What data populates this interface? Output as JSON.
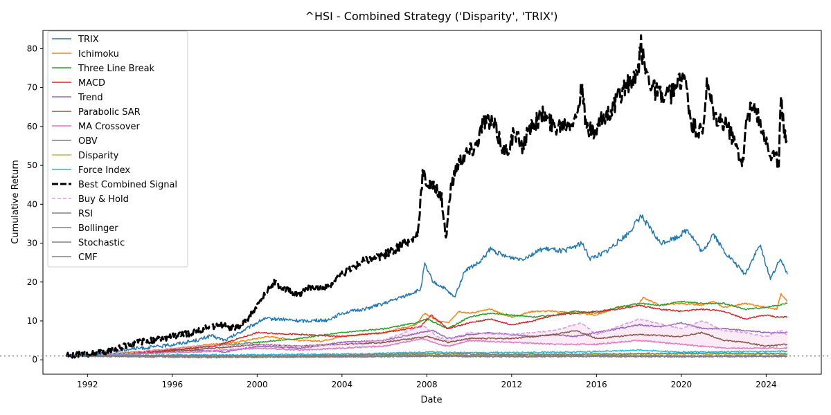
{
  "chart_data": {
    "type": "line",
    "title": "^HSI - Combined Strategy ('Disparity', 'TRIX')",
    "xlabel": "Date",
    "ylabel": "Cumulative Return",
    "xlim": [
      1989.9,
      2026.6
    ],
    "ylim": [
      -3.7,
      84.7
    ],
    "x_ticks": [
      1992,
      1996,
      2000,
      2004,
      2008,
      2012,
      2016,
      2020,
      2024
    ],
    "x_tick_labels": [
      "1992",
      "1996",
      "2000",
      "2004",
      "2008",
      "2012",
      "2016",
      "2020",
      "2024"
    ],
    "y_ticks": [
      0,
      10,
      20,
      30,
      40,
      50,
      60,
      70,
      80
    ],
    "y_tick_labels": [
      "0",
      "10",
      "20",
      "30",
      "40",
      "50",
      "60",
      "70",
      "80"
    ],
    "grid": false,
    "legend_position": "upper-left",
    "reference_line": {
      "y": 1,
      "color": "#808080",
      "style": "dotted"
    },
    "shaded_region": {
      "between": [
        "Buy & Hold",
        "MA Crossover"
      ],
      "color": "#e377c2",
      "opacity": 0.15
    },
    "series": [
      {
        "name": "TRIX",
        "color": "#1f77b4",
        "style": "solid",
        "width": 1.5,
        "x": [
          1991.0,
          1992,
          1993,
          1994,
          1995,
          1996,
          1997.3,
          1997.8,
          1998.5,
          1999.5,
          2000.3,
          2001,
          2002,
          2003.3,
          2004,
          2005,
          2006,
          2007,
          2007.7,
          2007.9,
          2008.3,
          2008.8,
          2009.3,
          2009.8,
          2010.5,
          2011,
          2011.7,
          2012.5,
          2013.5,
          2014.5,
          2015.3,
          2015.7,
          2016.5,
          2017.5,
          2018.1,
          2018.5,
          2019,
          2019.8,
          2020.3,
          2021,
          2021.5,
          2022,
          2022.5,
          2023,
          2023.7,
          2024.2,
          2024.7,
          2025.0
        ],
        "y": [
          1.0,
          1.3,
          2.0,
          2.8,
          3.2,
          3.9,
          5.2,
          6.2,
          5.0,
          8.0,
          10.5,
          10.5,
          10.0,
          10.2,
          12.0,
          13.0,
          14.5,
          16.5,
          18.0,
          24.5,
          20.0,
          18.5,
          16.0,
          23.0,
          25.0,
          28.5,
          26.5,
          26.0,
          28.5,
          28.0,
          30.0,
          26.0,
          28.0,
          32.5,
          37.0,
          34.0,
          30.0,
          31.5,
          33.5,
          27.5,
          32.5,
          28.0,
          25.0,
          22.0,
          29.5,
          21.0,
          26.0,
          22.0
        ]
      },
      {
        "name": "Ichimoku",
        "color": "#ff7f0e",
        "style": "solid",
        "width": 1.5,
        "x": [
          1991.0,
          1993,
          1996,
          1997.8,
          1999,
          2000.5,
          2002,
          2003,
          2004,
          2006,
          2007.5,
          2007.9,
          2008.5,
          2009,
          2009.5,
          2010,
          2011,
          2012,
          2013,
          2014,
          2015,
          2016,
          2017,
          2018,
          2018.2,
          2019,
          2020,
          2021,
          2021.5,
          2022,
          2023,
          2024,
          2024.5,
          2024.7,
          2025.0
        ],
        "y": [
          1.0,
          1.5,
          2.8,
          4.0,
          4.5,
          6.0,
          5.0,
          4.8,
          6.0,
          7.0,
          9.0,
          12.0,
          10.0,
          9.5,
          12.5,
          12.0,
          13.0,
          11.0,
          12.5,
          12.5,
          12.0,
          11.5,
          13.5,
          14.5,
          16.0,
          14.0,
          14.5,
          14.0,
          15.0,
          13.5,
          14.5,
          13.5,
          13.0,
          17.0,
          15.0
        ]
      },
      {
        "name": "Three Line Break",
        "color": "#2ca02c",
        "style": "solid",
        "width": 1.5,
        "x": [
          1991.0,
          1993,
          1996,
          1997.8,
          2000,
          2002,
          2004,
          2006,
          2007.5,
          2008,
          2009,
          2010,
          2011,
          2012,
          2013,
          2014,
          2015,
          2016,
          2017,
          2018,
          2019,
          2020,
          2021,
          2022,
          2023,
          2024,
          2024.5,
          2025.0
        ],
        "y": [
          1.0,
          1.5,
          2.5,
          3.5,
          4.5,
          5.5,
          7.0,
          8.0,
          9.5,
          10.5,
          8.0,
          11.0,
          12.0,
          11.5,
          11.0,
          11.5,
          12.5,
          12.0,
          13.5,
          14.5,
          14.0,
          15.0,
          14.5,
          14.5,
          13.0,
          13.5,
          14.0,
          14.5
        ]
      },
      {
        "name": "MACD",
        "color": "#d62728",
        "style": "solid",
        "width": 1.5,
        "x": [
          1991.0,
          1993,
          1996,
          1998,
          2000,
          2002,
          2004,
          2006,
          2007.7,
          2008.2,
          2009,
          2010,
          2011,
          2012,
          2013,
          2014,
          2015,
          2016,
          2017,
          2018,
          2019,
          2020,
          2021,
          2022,
          2023,
          2024,
          2024.5,
          2025.0
        ],
        "y": [
          1.0,
          1.3,
          2.5,
          3.5,
          7.0,
          6.5,
          6.0,
          7.0,
          8.5,
          11.5,
          8.0,
          9.5,
          10.5,
          9.0,
          10.0,
          11.5,
          12.0,
          12.5,
          13.0,
          14.0,
          13.0,
          12.5,
          13.0,
          12.5,
          10.5,
          11.5,
          11.0,
          11.0
        ]
      },
      {
        "name": "Trend",
        "color": "#9467bd",
        "style": "solid",
        "width": 1.5,
        "x": [
          1991.0,
          1994,
          1997,
          1998.5,
          2000,
          2002,
          2004,
          2006,
          2007.7,
          2008.3,
          2009,
          2010,
          2011,
          2012,
          2013,
          2014,
          2015,
          2016,
          2017,
          2018,
          2019,
          2020,
          2021,
          2022,
          2023,
          2024,
          2024.5,
          2025.0
        ],
        "y": [
          1.0,
          1.5,
          2.5,
          2.0,
          3.5,
          3.0,
          4.5,
          5.0,
          7.0,
          7.5,
          5.5,
          6.5,
          7.0,
          6.5,
          6.0,
          6.5,
          6.0,
          7.0,
          8.0,
          9.0,
          8.5,
          9.5,
          8.0,
          8.0,
          7.5,
          7.0,
          7.0,
          7.0
        ]
      },
      {
        "name": "Parabolic SAR",
        "color": "#8c564b",
        "style": "solid",
        "width": 1.5,
        "x": [
          1991.0,
          1994,
          1997,
          2000,
          2002,
          2004,
          2006,
          2008,
          2009,
          2010,
          2012,
          2014,
          2015,
          2016,
          2018,
          2020,
          2021,
          2022,
          2023,
          2024,
          2025.0
        ],
        "y": [
          1.0,
          1.5,
          2.5,
          4.0,
          3.5,
          4.0,
          4.5,
          6.0,
          4.5,
          5.5,
          5.5,
          6.5,
          7.5,
          5.5,
          6.5,
          6.0,
          7.0,
          5.0,
          4.5,
          3.5,
          4.0
        ]
      },
      {
        "name": "MA Crossover",
        "color": "#e377c2",
        "style": "solid",
        "width": 1.5,
        "x": [
          1991.0,
          1994,
          1997,
          2000,
          2002,
          2004,
          2006,
          2007.8,
          2008.5,
          2009,
          2010,
          2012,
          2014,
          2016,
          2018,
          2020,
          2021,
          2022,
          2023,
          2024,
          2025.0
        ],
        "y": [
          1.0,
          1.5,
          2.0,
          3.0,
          2.5,
          3.0,
          3.5,
          5.5,
          4.0,
          3.5,
          5.0,
          4.5,
          4.0,
          4.0,
          5.0,
          4.0,
          3.5,
          3.0,
          3.0,
          3.0,
          3.0
        ]
      },
      {
        "name": "OBV",
        "color": "#7f7f7f",
        "style": "solid",
        "width": 1.5,
        "x": [
          1991.0,
          1995,
          2000,
          2005,
          2008,
          2010,
          2015,
          2020,
          2025.0
        ],
        "y": [
          1.0,
          1.0,
          0.8,
          0.9,
          1.2,
          0.9,
          1.0,
          1.0,
          1.0
        ]
      },
      {
        "name": "Disparity",
        "color": "#bcbd22",
        "style": "solid",
        "width": 1.5,
        "x": [
          1991.0,
          1995,
          2000,
          2005,
          2008,
          2010,
          2015,
          2020,
          2025.0
        ],
        "y": [
          1.0,
          1.1,
          1.0,
          1.2,
          1.3,
          1.2,
          1.4,
          1.5,
          1.5
        ]
      },
      {
        "name": "Force Index",
        "color": "#17becf",
        "style": "solid",
        "width": 1.5,
        "x": [
          1991.0,
          1995,
          2000,
          2005,
          2008,
          2010,
          2015,
          2018,
          2020,
          2025.0
        ],
        "y": [
          1.0,
          1.2,
          1.3,
          1.5,
          2.0,
          1.8,
          2.0,
          2.5,
          2.0,
          2.2
        ]
      },
      {
        "name": "Best Combined Signal",
        "color": "#000000",
        "style": "dashed",
        "width": 3,
        "x": [
          1991.0,
          1992,
          1993,
          1994,
          1995,
          1996,
          1997,
          1997.5,
          1998.2,
          1998.6,
          1999,
          1999.5,
          2000,
          2000.4,
          2000.8,
          2001.3,
          2002,
          2002.6,
          2003.3,
          2004,
          2005,
          2006,
          2006.7,
          2007.3,
          2007.6,
          2007.8,
          2008.1,
          2008.4,
          2008.7,
          2008.9,
          2009.1,
          2009.4,
          2009.8,
          2010.3,
          2010.7,
          2011.2,
          2011.7,
          2012.1,
          2012.5,
          2013,
          2013.5,
          2014,
          2014.5,
          2015,
          2015.3,
          2015.5,
          2015.9,
          2016.3,
          2016.8,
          2017.3,
          2017.9,
          2018.1,
          2018.3,
          2018.7,
          2019.2,
          2019.8,
          2020.1,
          2020.5,
          2021,
          2021.2,
          2021.6,
          2022.2,
          2022.6,
          2022.9,
          2023.1,
          2023.4,
          2023.8,
          2024.2,
          2024.6,
          2024.7,
          2024.9,
          2025.0
        ],
        "y": [
          1.0,
          1.5,
          2.2,
          4.0,
          5.0,
          6.0,
          7.0,
          8.0,
          9.0,
          8.5,
          8.0,
          10.0,
          14.0,
          17.0,
          20.0,
          18.0,
          17.0,
          19.0,
          18.5,
          22.0,
          25.5,
          27.0,
          29.0,
          31.0,
          33.0,
          48.0,
          45.0,
          44.0,
          42.0,
          31.0,
          43.0,
          50.0,
          53.0,
          55.0,
          62.0,
          60.0,
          53.0,
          58.0,
          55.0,
          61.0,
          63.0,
          60.0,
          61.0,
          62.0,
          70.0,
          60.0,
          58.0,
          62.0,
          65.0,
          70.0,
          72.0,
          80.5,
          75.0,
          70.0,
          67.0,
          70.0,
          74.0,
          60.0,
          58.0,
          70.0,
          62.0,
          60.0,
          55.0,
          51.0,
          63.0,
          65.0,
          60.0,
          53.0,
          51.0,
          67.0,
          58.0,
          57.0
        ]
      },
      {
        "name": "Buy & Hold",
        "color": "#dd99dd",
        "style": "dashed",
        "width": 1.5,
        "x": [
          1991.0,
          1994,
          1997,
          2000,
          2002,
          2004,
          2006,
          2007.8,
          2008.5,
          2009,
          2010,
          2012,
          2014,
          2015.3,
          2016,
          2018,
          2020,
          2021,
          2022,
          2023,
          2024,
          2024.7,
          2025.0
        ],
        "y": [
          1.0,
          1.8,
          3.5,
          4.0,
          3.5,
          4.0,
          5.0,
          9.0,
          6.0,
          5.0,
          7.0,
          6.5,
          7.5,
          9.5,
          6.5,
          10.5,
          8.0,
          10.0,
          7.5,
          7.0,
          6.0,
          7.5,
          6.5
        ]
      },
      {
        "name": "RSI",
        "color": "#808080",
        "style": "solid",
        "width": 1.5,
        "x": [
          1991.0,
          1997.8,
          2000,
          2008,
          2012,
          2016,
          2020,
          2025.0
        ],
        "y": [
          1.0,
          0.6,
          0.7,
          0.9,
          0.8,
          0.9,
          0.8,
          0.9
        ]
      },
      {
        "name": "Bollinger",
        "color": "#808080",
        "style": "solid",
        "width": 1.5,
        "x": [
          1991.0,
          1995,
          2000,
          2005,
          2008,
          2012,
          2016,
          2020,
          2025.0
        ],
        "y": [
          1.0,
          1.1,
          1.0,
          1.3,
          1.6,
          1.4,
          1.5,
          1.7,
          1.6
        ]
      },
      {
        "name": "Stochastic",
        "color": "#808080",
        "style": "solid",
        "width": 1.5,
        "x": [
          1991.0,
          1995,
          2000,
          2005,
          2008,
          2012,
          2016,
          2020,
          2025.0
        ],
        "y": [
          1.0,
          0.9,
          0.7,
          0.8,
          1.0,
          0.9,
          0.9,
          0.8,
          0.9
        ]
      },
      {
        "name": "CMF",
        "color": "#808080",
        "style": "solid",
        "width": 1.5,
        "x": [
          1991.0,
          1995,
          2000,
          2005,
          2008,
          2012,
          2016,
          2020,
          2025.0
        ],
        "y": [
          1.0,
          1.0,
          0.9,
          1.0,
          1.1,
          1.0,
          1.1,
          1.0,
          1.1
        ]
      }
    ]
  }
}
